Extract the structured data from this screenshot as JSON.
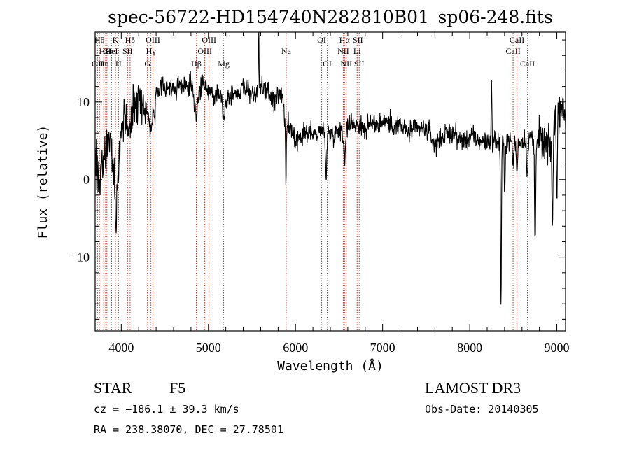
{
  "chart_data": {
    "type": "line",
    "title": "spec-56722-HD154740N282810B01_sp06-248.fits",
    "xlabel": "Wavelength (Å)",
    "ylabel": "Flux (relative)",
    "xlim": [
      3700,
      9100
    ],
    "ylim": [
      -19.5,
      19.0
    ],
    "xticks": [
      4000,
      5000,
      6000,
      7000,
      8000,
      9000
    ],
    "xtick_labels": [
      "4000",
      "5000",
      "6000",
      "7000",
      "8000",
      "9000"
    ],
    "yticks": [
      -10,
      0,
      10
    ],
    "ytick_labels": [
      "−10",
      "0",
      "10"
    ],
    "grid": false,
    "series": [
      {
        "color": "#000000",
        "anchors": [
          [
            3700,
            3
          ],
          [
            3720,
            2
          ],
          [
            3750,
            -2
          ],
          [
            3780,
            3
          ],
          [
            3800,
            1
          ],
          [
            3830,
            4
          ],
          [
            3860,
            5
          ],
          [
            3880,
            4
          ],
          [
            3900,
            2
          ],
          [
            3920,
            6
          ],
          [
            3940,
            0
          ],
          [
            3960,
            5
          ],
          [
            3980,
            6
          ],
          [
            4000,
            7
          ],
          [
            4050,
            8
          ],
          [
            4100,
            8
          ],
          [
            4150,
            10
          ],
          [
            4200,
            10.5
          ],
          [
            4250,
            10
          ],
          [
            4300,
            9
          ],
          [
            4340,
            9
          ],
          [
            4400,
            11
          ],
          [
            4450,
            11.5
          ],
          [
            4500,
            12
          ],
          [
            4550,
            12
          ],
          [
            4600,
            11.5
          ],
          [
            4650,
            12
          ],
          [
            4700,
            12
          ],
          [
            4750,
            12
          ],
          [
            4800,
            12
          ],
          [
            4861,
            11
          ],
          [
            4900,
            12
          ],
          [
            4950,
            12
          ],
          [
            5000,
            11.5
          ],
          [
            5050,
            11
          ],
          [
            5100,
            11
          ],
          [
            5150,
            11.5
          ],
          [
            5200,
            10
          ],
          [
            5250,
            11
          ],
          [
            5300,
            11.5
          ],
          [
            5350,
            11
          ],
          [
            5400,
            12
          ],
          [
            5450,
            11.5
          ],
          [
            5500,
            11
          ],
          [
            5550,
            11
          ],
          [
            5600,
            12
          ],
          [
            5650,
            11.5
          ],
          [
            5700,
            11
          ],
          [
            5750,
            10
          ],
          [
            5800,
            11
          ],
          [
            5850,
            11
          ],
          [
            5880,
            9
          ],
          [
            5900,
            8
          ],
          [
            5950,
            6
          ],
          [
            6000,
            5
          ],
          [
            6050,
            5
          ],
          [
            6100,
            6
          ],
          [
            6150,
            6
          ],
          [
            6200,
            6
          ],
          [
            6250,
            6
          ],
          [
            6300,
            6.5
          ],
          [
            6350,
            6
          ],
          [
            6400,
            6
          ],
          [
            6450,
            6
          ],
          [
            6500,
            6.5
          ],
          [
            6563,
            6.5
          ],
          [
            6600,
            7
          ],
          [
            6650,
            7.5
          ],
          [
            6700,
            7
          ],
          [
            6750,
            7
          ],
          [
            6800,
            6.5
          ],
          [
            6850,
            7
          ],
          [
            6900,
            7.5
          ],
          [
            6950,
            7
          ],
          [
            7000,
            7.5
          ],
          [
            7050,
            7.5
          ],
          [
            7100,
            7
          ],
          [
            7150,
            7
          ],
          [
            7200,
            7
          ],
          [
            7250,
            6.5
          ],
          [
            7300,
            6
          ],
          [
            7350,
            6.5
          ],
          [
            7400,
            6.5
          ],
          [
            7450,
            6.5
          ],
          [
            7500,
            6.5
          ],
          [
            7550,
            6
          ],
          [
            7600,
            5.5
          ],
          [
            7650,
            5.5
          ],
          [
            7700,
            5.5
          ],
          [
            7750,
            6
          ],
          [
            7800,
            6
          ],
          [
            7850,
            5.5
          ],
          [
            7900,
            5
          ],
          [
            7950,
            5
          ],
          [
            8000,
            5.5
          ],
          [
            8050,
            5.5
          ],
          [
            8100,
            5
          ],
          [
            8150,
            5
          ],
          [
            8200,
            5
          ],
          [
            8250,
            5
          ],
          [
            8300,
            5
          ],
          [
            8350,
            4.5
          ],
          [
            8400,
            5
          ],
          [
            8450,
            5
          ],
          [
            8500,
            5
          ],
          [
            8550,
            5
          ],
          [
            8600,
            5
          ],
          [
            8650,
            5
          ],
          [
            8700,
            5.5
          ],
          [
            8750,
            5
          ],
          [
            8800,
            5
          ],
          [
            8850,
            4.5
          ],
          [
            8900,
            4
          ],
          [
            8950,
            5
          ],
          [
            8980,
            9
          ],
          [
            9000,
            10
          ],
          [
            9020,
            9
          ],
          [
            9050,
            10
          ],
          [
            9100,
            8
          ]
        ],
        "features": [
          [
            3933,
            -6,
            18
          ],
          [
            3968,
            -3,
            15
          ],
          [
            4101,
            -2,
            15
          ],
          [
            4340,
            -3,
            15
          ],
          [
            4383,
            -2,
            10
          ],
          [
            4861,
            -2.5,
            20
          ],
          [
            5172,
            -2.5,
            15
          ],
          [
            5890,
            -4,
            12
          ],
          [
            6350,
            -5,
            8
          ],
          [
            6563,
            -3,
            12
          ],
          [
            7600,
            -1,
            30
          ],
          [
            8250,
            8,
            4
          ],
          [
            8359,
            -21,
            5
          ],
          [
            8401,
            -8,
            5
          ],
          [
            8498,
            -3,
            8
          ],
          [
            8542,
            -4,
            8
          ],
          [
            8662,
            -4,
            8
          ],
          [
            8750,
            -13,
            6
          ],
          [
            8950,
            -12,
            6
          ],
          [
            9000,
            -13,
            6
          ],
          [
            5577,
            7,
            4
          ],
          [
            5890,
            -6,
            3
          ]
        ],
        "noise": 1.2,
        "seed": 56722,
        "samples": 1500
      }
    ],
    "spectral_lines": [
      {
        "wavelength": 3750,
        "label": "Hθ",
        "row": 0
      },
      {
        "wavelength": 3727,
        "label": "OII",
        "row": 2
      },
      {
        "wavelength": 3798,
        "label": "Hη",
        "row": 2
      },
      {
        "wavelength": 3820,
        "label": "HeI",
        "row": 1
      },
      {
        "wavelength": 3835,
        "label": "CI",
        "row": 1
      },
      {
        "wavelength": 3889,
        "label": "HeI",
        "row": 1
      },
      {
        "wavelength": 3933,
        "label": "K",
        "row": 0
      },
      {
        "wavelength": 3968,
        "label": "H",
        "row": 2
      },
      {
        "wavelength": 4072,
        "label": "SII",
        "row": 1
      },
      {
        "wavelength": 4101,
        "label": "Hδ",
        "row": 0
      },
      {
        "wavelength": 4300,
        "label": "G",
        "row": 2
      },
      {
        "wavelength": 4340,
        "label": "Hγ",
        "row": 1
      },
      {
        "wavelength": 4363,
        "label": "OIII",
        "row": 0
      },
      {
        "wavelength": 4861,
        "label": "Hβ",
        "row": 2
      },
      {
        "wavelength": 4959,
        "label": "OIII",
        "row": 1
      },
      {
        "wavelength": 5007,
        "label": "OIII",
        "row": 0
      },
      {
        "wavelength": 5175,
        "label": "Mg",
        "row": 2
      },
      {
        "wavelength": 5893,
        "label": "Na",
        "row": 1
      },
      {
        "wavelength": 6300,
        "label": "OI",
        "row": 0
      },
      {
        "wavelength": 6364,
        "label": "OI",
        "row": 2
      },
      {
        "wavelength": 6548,
        "label": "NII",
        "row": 1
      },
      {
        "wavelength": 6563,
        "label": "Hα",
        "row": 0
      },
      {
        "wavelength": 6583,
        "label": "NII",
        "row": 2
      },
      {
        "wavelength": 6707,
        "label": "Li",
        "row": 1
      },
      {
        "wavelength": 6716,
        "label": "SII",
        "row": 0
      },
      {
        "wavelength": 6731,
        "label": "SII",
        "row": 2
      },
      {
        "wavelength": 8498,
        "label": "CaII",
        "row": 1
      },
      {
        "wavelength": 8542,
        "label": "CaII",
        "row": 0
      },
      {
        "wavelength": 8662,
        "label": "CaII",
        "row": 2
      }
    ]
  },
  "info": {
    "object_class": "STAR",
    "subclass": "F5",
    "survey": "LAMOST DR3",
    "cz": "cz = −186.1 ± 39.3 km/s",
    "obs_date": "Obs-Date: 20140305",
    "coords": "RA = 238.38070, DEC =  27.78501"
  }
}
